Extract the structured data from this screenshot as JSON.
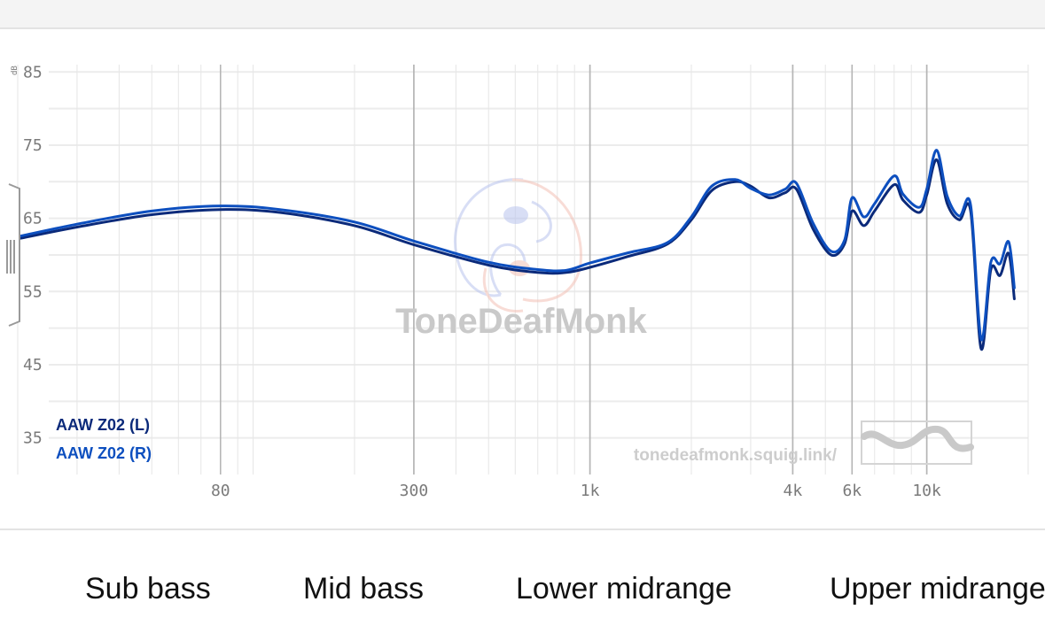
{
  "colors": {
    "left_channel": "#0b2a7a",
    "right_channel": "#0d4fbf",
    "grid": "#e6e6e6",
    "major_grid": "#b5b5b5"
  },
  "bands": [
    "Sub bass",
    "Mid bass",
    "Lower midrange",
    "Upper midrange"
  ],
  "chart_data": {
    "type": "line",
    "xscale": "log",
    "xlim": [
      20,
      20000
    ],
    "ylim": [
      30,
      86
    ],
    "yunit": "dB",
    "xticks": [
      {
        "v": 80,
        "label": "80"
      },
      {
        "v": 300,
        "label": "300"
      },
      {
        "v": 1000,
        "label": "1k"
      },
      {
        "v": 4000,
        "label": "4k"
      },
      {
        "v": 6000,
        "label": "6k"
      },
      {
        "v": 10000,
        "label": "10k"
      }
    ],
    "yticks": [
      {
        "v": 85,
        "label": "85"
      },
      {
        "v": 75,
        "label": "75"
      },
      {
        "v": 65,
        "label": "65"
      },
      {
        "v": 55,
        "label": "55"
      },
      {
        "v": 45,
        "label": "45"
      },
      {
        "v": 35,
        "label": "35"
      }
    ],
    "grid": true,
    "watermark": "ToneDeafMonk",
    "footer_url": "tonedeafmonk.squig.link/",
    "legend_position": "bottom-left",
    "series": [
      {
        "name": "AAW Z02 (L)",
        "color": "#0b2a7a",
        "x": [
          20,
          30,
          50,
          80,
          120,
          200,
          300,
          500,
          700,
          850,
          1000,
          1300,
          1700,
          2000,
          2300,
          2700,
          3000,
          3400,
          3800,
          4100,
          4600,
          5200,
          5700,
          6000,
          6500,
          7000,
          8000,
          8500,
          9500,
          10000,
          10700,
          11500,
          12500,
          13500,
          14500,
          15500,
          16500,
          17500,
          18200
        ],
        "y": [
          62.2,
          63.8,
          65.5,
          66.2,
          65.8,
          64.0,
          61.4,
          58.6,
          57.6,
          57.6,
          58.3,
          59.8,
          61.5,
          64.8,
          68.8,
          70.0,
          69.4,
          67.8,
          68.5,
          69.0,
          63.5,
          60.0,
          61.5,
          66.0,
          64.0,
          66.0,
          69.6,
          67.5,
          65.8,
          68.2,
          73.0,
          67.0,
          64.8,
          66.0,
          47.2,
          58.0,
          57.2,
          60.2,
          54.0
        ]
      },
      {
        "name": "AAW Z02 (R)",
        "color": "#0d4fbf",
        "x": [
          20,
          30,
          50,
          80,
          120,
          200,
          300,
          500,
          700,
          850,
          1000,
          1300,
          1700,
          2000,
          2300,
          2700,
          3000,
          3400,
          3800,
          4100,
          4600,
          5200,
          5700,
          6000,
          6500,
          7000,
          8000,
          8500,
          9500,
          10000,
          10700,
          11500,
          12500,
          13500,
          14500,
          15500,
          16500,
          17500,
          18200
        ],
        "y": [
          62.5,
          64.2,
          66.0,
          66.7,
          66.2,
          64.5,
          61.9,
          59.0,
          58.0,
          57.9,
          58.9,
          60.3,
          61.7,
          65.2,
          69.4,
          70.3,
          69.1,
          68.2,
          69.0,
          69.8,
          64.3,
          60.5,
          62.0,
          67.8,
          65.2,
          67.0,
          70.8,
          68.3,
          66.5,
          69.0,
          74.3,
          68.0,
          65.3,
          66.8,
          48.5,
          59.0,
          58.8,
          61.8,
          55.5
        ]
      }
    ]
  }
}
